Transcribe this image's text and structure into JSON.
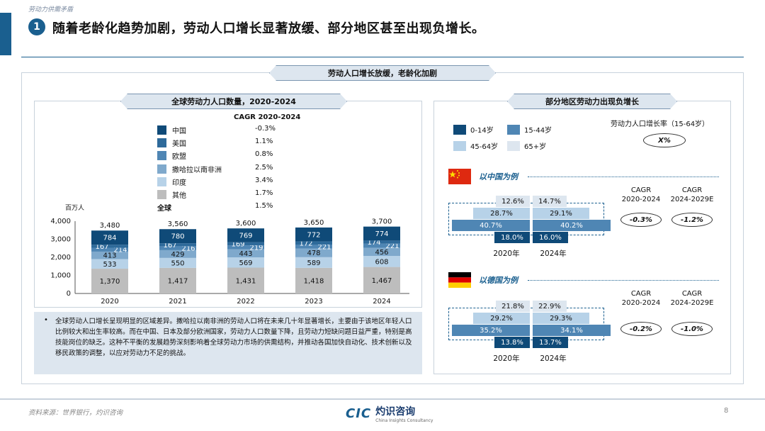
{
  "header": {
    "section_tag": "劳动力供需矛盾",
    "badge": "1",
    "headline": "随着老龄化趋势加剧，劳动人口增长显著放缓、部分地区甚至出现负增长。"
  },
  "main_banner": "劳动人口增长放缓，老龄化加剧",
  "left_panel": {
    "title": "全球劳动力人口数量，2020-2024",
    "legend_title": "CAGR 2020-2024",
    "unit": "百万人",
    "legend": [
      {
        "name": "中国",
        "cagr": "-0.3%",
        "color": "#0f4a78"
      },
      {
        "name": "美国",
        "cagr": "1.1%",
        "color": "#2e6a9a"
      },
      {
        "name": "欧盟",
        "cagr": "0.8%",
        "color": "#4f86b4"
      },
      {
        "name": "撒哈拉以南非洲",
        "cagr": "2.5%",
        "color": "#7fa9cc"
      },
      {
        "name": "印度",
        "cagr": "3.4%",
        "color": "#b7d2e8"
      },
      {
        "name": "其他",
        "cagr": "1.7%",
        "color": "#bdbdbd"
      }
    ],
    "total_label": "全球",
    "total_cagr": "1.5%",
    "note": "全球劳动人口增长呈现明显的区域差异。撒哈拉以南非洲的劳动人口将在未来几十年显著增长，主要由于该地区年轻人口比例较大和出生率较高。而在中国、日本及部分欧洲国家，劳动力人口数量下降，且劳动力短缺问题日益严重，特别是高技能岗位的缺乏。这种不平衡的发展趋势深刻影响着全球劳动力市场的供需结构，并推动各国加快自动化、技术创新以及移民政策的调整，以应对劳动力不足的挑战。"
  },
  "chart_data": {
    "type": "bar",
    "stacked": true,
    "categories": [
      "2020",
      "2021",
      "2022",
      "2023",
      "2024"
    ],
    "ylim": [
      0,
      4000
    ],
    "yticks": [
      "0",
      "1,000",
      "2,000",
      "3,000",
      "4,000"
    ],
    "totals": [
      3480,
      3560,
      3600,
      3650,
      3700
    ],
    "total_labels": [
      "3,480",
      "3,560",
      "3,600",
      "3,650",
      "3,700"
    ],
    "series": [
      {
        "name": "其他",
        "values": [
          1370,
          1417,
          1431,
          1418,
          1467
        ],
        "labels": [
          "1,370",
          "1,417",
          "1,431",
          "1,418",
          "1,467"
        ],
        "color": "#bdbdbd",
        "text": "#111111"
      },
      {
        "name": "印度",
        "values": [
          533,
          550,
          569,
          589,
          608
        ],
        "labels": [
          "533",
          "550",
          "569",
          "589",
          "608"
        ],
        "color": "#b7d2e8",
        "text": "#111111"
      },
      {
        "name": "撒哈拉以南非洲",
        "values": [
          413,
          429,
          443,
          478,
          456
        ],
        "labels": [
          "413",
          "429",
          "443",
          "478",
          "456"
        ],
        "color": "#7fa9cc",
        "text": "#111111"
      },
      {
        "name": "欧盟",
        "values": [
          214,
          216,
          219,
          221,
          221
        ],
        "labels": [
          "214",
          "216",
          "219",
          "221",
          "221"
        ],
        "color": "#4f86b4",
        "text": "#ffffff"
      },
      {
        "name": "美国",
        "values": [
          167,
          167,
          169,
          172,
          174
        ],
        "labels": [
          "167",
          "167",
          "169",
          "172",
          "174"
        ],
        "color": "#2e6a9a",
        "text": "#ffffff"
      },
      {
        "name": "中国",
        "values": [
          784,
          780,
          769,
          772,
          774
        ],
        "labels": [
          "784",
          "780",
          "769",
          "772",
          "774"
        ],
        "color": "#0f4a78",
        "text": "#ffffff"
      }
    ]
  },
  "right_panel": {
    "title": "部分地区劳动力出现负增长",
    "legend": [
      {
        "name": "0-14岁",
        "color": "#0f4a78"
      },
      {
        "name": "15-44岁",
        "color": "#4f86b4"
      },
      {
        "name": "45-64岁",
        "color": "#b7d2e8"
      },
      {
        "name": "65+岁",
        "color": "#dde6ef"
      }
    ],
    "growth_label": "劳动力人口增长率（15-64岁）",
    "growth_pill": "X%",
    "cagr_col1": "CAGR\n2020-2024",
    "cagr_col2": "CAGR\n2024-2029E",
    "china": {
      "label": "以中国为例",
      "years": [
        "2020年",
        "2024年"
      ],
      "pct_65": [
        "12.6%",
        "14.7%"
      ],
      "pct_45": [
        "28.7%",
        "29.1%"
      ],
      "pct_15": [
        "40.7%",
        "40.2%"
      ],
      "pct_0": [
        "18.0%",
        "16.0%"
      ],
      "cagr1": "-0.3%",
      "cagr2": "-1.2%"
    },
    "germany": {
      "label": "以德国为例",
      "years": [
        "2020年",
        "2024年"
      ],
      "pct_65": [
        "21.8%",
        "22.9%"
      ],
      "pct_45": [
        "29.2%",
        "29.3%"
      ],
      "pct_15": [
        "35.2%",
        "34.1%"
      ],
      "pct_0": [
        "13.8%",
        "13.7%"
      ],
      "cagr1": "-0.2%",
      "cagr2": "-1.0%"
    }
  },
  "footer": {
    "source": "资料来源：世界银行，灼识咨询",
    "logo_mark": "CIC",
    "logo_cn": "灼识咨询",
    "logo_en": "China Insights Consultancy",
    "page": "8"
  }
}
